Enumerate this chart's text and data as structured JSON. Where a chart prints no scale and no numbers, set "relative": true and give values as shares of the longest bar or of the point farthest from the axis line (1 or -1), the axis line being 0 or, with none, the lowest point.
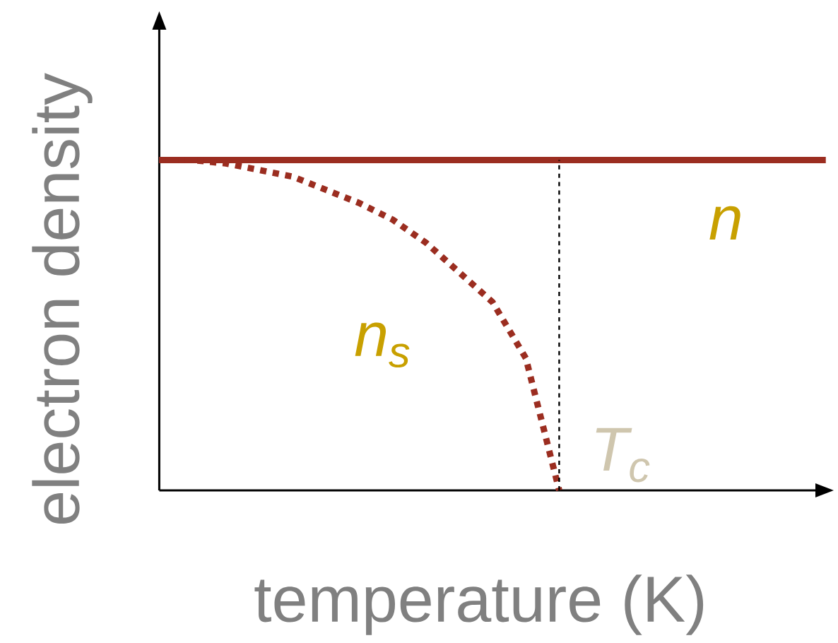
{
  "chart_data": {
    "type": "line",
    "relative": true,
    "xlabel": "temperature (K)",
    "ylabel": "electron density",
    "categories": [
      null,
      null,
      null,
      null,
      null,
      null,
      null,
      null,
      null,
      null,
      null,
      null,
      null,
      null,
      null,
      null,
      null,
      null,
      null,
      null,
      null
    ],
    "series": [
      {
        "color": "#9b2d20",
        "line_style": "solid",
        "values": [
          1,
          1,
          1,
          1,
          1,
          1,
          1,
          1,
          1,
          1,
          1,
          1,
          1,
          1,
          1,
          1,
          1,
          1,
          1,
          1,
          1
        ]
      },
      {
        "color": "#9b2d20",
        "line_style": "dotted",
        "values": [
          1,
          1,
          0.99,
          0.97,
          0.95,
          0.91,
          0.87,
          0.82,
          0.75,
          0.66,
          0.57,
          0.4,
          0,
          null,
          null,
          null,
          null,
          null,
          null,
          null,
          null
        ]
      }
    ],
    "ref_lines": [
      {
        "axis": "x",
        "label": "T$_{c}$",
        "color": "#cfc6ae",
        "line_style": "dashed"
      }
    ],
    "annotations": [
      "n",
      "n$_{s}$"
    ]
  }
}
